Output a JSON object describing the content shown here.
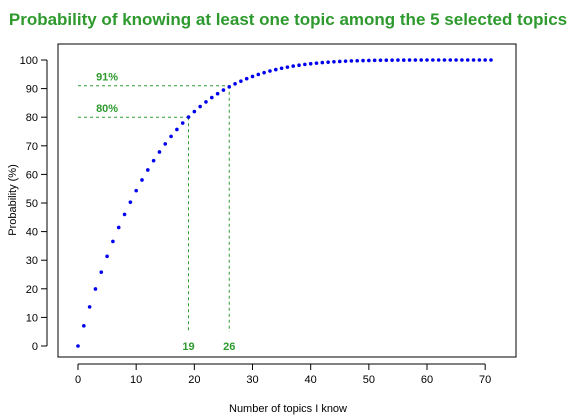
{
  "chart_data": {
    "type": "scatter",
    "title": "Probability of knowing at least one topic among the 5 selected topics",
    "xlabel": "Number of topics I know",
    "ylabel": "Probability (%)",
    "xlim": [
      0,
      71
    ],
    "ylim": [
      0,
      100
    ],
    "xticks": [
      "0",
      "10",
      "20",
      "30",
      "40",
      "50",
      "60",
      "70"
    ],
    "yticks": [
      "0",
      "10",
      "20",
      "30",
      "40",
      "50",
      "60",
      "70",
      "80",
      "90",
      "100"
    ],
    "total_topics": 71,
    "selected_topics": 5,
    "grid": false,
    "colors": {
      "points": "#0000ee",
      "annotation": "#2e9a2e",
      "title": "#2e9a2e"
    },
    "annotations": [
      {
        "x": 19,
        "y": 80,
        "y_text": "80%",
        "x_text": "19"
      },
      {
        "x": 26,
        "y": 91,
        "y_text": "91%",
        "x_text": "26"
      }
    ]
  }
}
